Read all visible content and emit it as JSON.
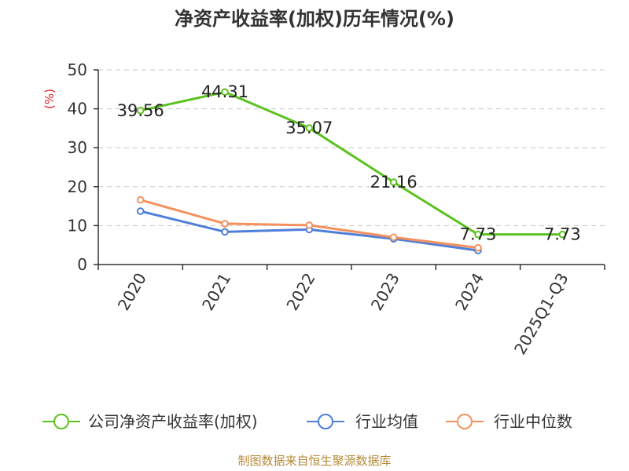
{
  "chart_data": {
    "type": "line",
    "title": "净资产收益率(加权)历年情况(%)",
    "ylabel": "(%)",
    "xlabel": "",
    "categories": [
      "2020",
      "2021",
      "2022",
      "2023",
      "2024",
      "2025Q1-Q3"
    ],
    "ylim": [
      0,
      50
    ],
    "yticks": [
      0,
      10,
      20,
      30,
      40,
      50
    ],
    "grid": true,
    "legend_position": "bottom",
    "series": [
      {
        "name": "公司净资产收益率(加权)",
        "color": "#5cc21f",
        "values": [
          39.56,
          44.31,
          35.07,
          21.16,
          7.73,
          7.73
        ],
        "labels": [
          "39.56",
          "44.31",
          "35.07",
          "21.16",
          "7.73",
          "7.73"
        ]
      },
      {
        "name": "行业均值",
        "color": "#4f7fd9",
        "values": [
          13.7,
          8.4,
          9.0,
          6.6,
          3.6,
          null
        ]
      },
      {
        "name": "行业中位数",
        "color": "#f5915e",
        "values": [
          16.6,
          10.5,
          10.1,
          7.0,
          4.3,
          null
        ]
      }
    ]
  },
  "source": "制图数据来自恒生聚源数据库"
}
